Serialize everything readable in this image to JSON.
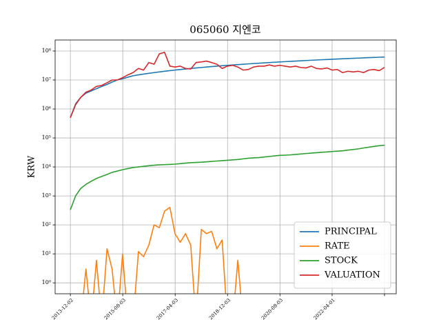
{
  "chart_data": {
    "type": "line",
    "title": "065060 지엔코",
    "ylabel": "KRW",
    "log_y": true,
    "grid": true,
    "legend": "lower right",
    "x": [
      "2013-12-02",
      "2014-02-01",
      "2014-04-01",
      "2014-06-01",
      "2014-08-01",
      "2014-10-01",
      "2014-12-01",
      "2015-02-01",
      "2015-04-01",
      "2015-06-01",
      "2015-08-01",
      "2015-10-01",
      "2015-12-01",
      "2016-02-01",
      "2016-04-01",
      "2016-06-01",
      "2016-08-01",
      "2016-10-01",
      "2016-12-01",
      "2017-02-01",
      "2017-04-01",
      "2017-06-01",
      "2017-08-01",
      "2017-10-01",
      "2017-12-01",
      "2018-02-01",
      "2018-04-01",
      "2018-06-01",
      "2018-08-01",
      "2018-10-01",
      "2018-12-01",
      "2019-02-01",
      "2019-04-01",
      "2019-06-01",
      "2019-08-01",
      "2019-10-01",
      "2019-12-01",
      "2020-02-01",
      "2020-04-01",
      "2020-06-01",
      "2020-08-01",
      "2020-10-01",
      "2020-12-01",
      "2021-02-01",
      "2021-04-01",
      "2021-06-01",
      "2021-08-01",
      "2021-10-01",
      "2021-12-01",
      "2022-02-01",
      "2022-04-01",
      "2022-06-01",
      "2022-08-01",
      "2022-10-01",
      "2022-12-01",
      "2023-02-01",
      "2023-04-01",
      "2023-06-01",
      "2023-08-01",
      "2023-10-01",
      "2023-12-01"
    ],
    "series": [
      {
        "name": "PRINCIPAL",
        "color": "#1f77b4",
        "values": [
          500000,
          1500000,
          2500000,
          3500000,
          4200000,
          5000000,
          6000000,
          7000000,
          8500000,
          10000000,
          11000000,
          12500000,
          14000000,
          15000000,
          16000000,
          17000000,
          18000000,
          19000000,
          20000000,
          21000000,
          22000000,
          23000000,
          24000000,
          25000000,
          26000000,
          27000000,
          28000000,
          29000000,
          30000000,
          31000000,
          32000000,
          33000000,
          34000000,
          35000000,
          36000000,
          37000000,
          38000000,
          39000000,
          40000000,
          41000000,
          42000000,
          43000000,
          44000000,
          45000000,
          46000000,
          47000000,
          48000000,
          49000000,
          50000000,
          51000000,
          52000000,
          53000000,
          54000000,
          55000000,
          56000000,
          57000000,
          58000000,
          59000000,
          60000000,
          61000000,
          62000000
        ]
      },
      {
        "name": "RATE",
        "color": "#ff7f0e",
        "values": [
          0,
          0,
          0,
          3,
          0,
          6,
          0,
          15,
          3,
          0,
          10,
          0,
          0,
          12,
          8,
          20,
          100,
          80,
          300,
          400,
          50,
          25,
          50,
          20,
          0,
          70,
          50,
          60,
          15,
          30,
          0,
          0,
          6,
          0,
          0,
          0,
          0,
          0,
          0,
          0,
          0,
          0,
          0,
          0,
          0,
          0,
          0,
          0,
          0,
          0,
          0,
          0,
          0,
          0,
          0,
          0,
          0,
          0,
          0,
          0,
          0
        ]
      },
      {
        "name": "STOCK",
        "color": "#2ca02c",
        "values": [
          330,
          1000,
          1800,
          2500,
          3200,
          4000,
          4700,
          5500,
          6500,
          7200,
          8000,
          8800,
          9500,
          10000,
          10500,
          11000,
          11500,
          11800,
          12000,
          12200,
          12500,
          13000,
          13500,
          14000,
          14300,
          14600,
          15000,
          15500,
          16000,
          16500,
          17000,
          17500,
          18000,
          19000,
          20000,
          20500,
          21000,
          22000,
          23000,
          24000,
          25000,
          25500,
          26000,
          27000,
          28000,
          29000,
          30000,
          31000,
          32000,
          33000,
          34000,
          35000,
          36000,
          38000,
          40000,
          42000,
          45000,
          48000,
          51000,
          54000,
          56000
        ]
      },
      {
        "name": "VALUATION",
        "color": "#d62728",
        "values": [
          500000,
          1400000,
          2500000,
          3800000,
          4500000,
          6000000,
          6500000,
          8000000,
          10000000,
          10000000,
          12000000,
          15000000,
          18000000,
          25000000,
          22000000,
          40000000,
          35000000,
          80000000,
          90000000,
          30000000,
          28000000,
          30000000,
          25000000,
          24000000,
          40000000,
          42000000,
          45000000,
          40000000,
          35000000,
          25000000,
          30000000,
          32000000,
          28000000,
          22000000,
          23000000,
          28000000,
          30000000,
          30000000,
          33000000,
          30000000,
          32000000,
          30000000,
          28000000,
          30000000,
          27000000,
          26000000,
          30000000,
          25000000,
          24000000,
          26000000,
          22000000,
          23000000,
          18000000,
          20000000,
          19000000,
          20000000,
          18000000,
          22000000,
          23000000,
          21000000,
          27000000
        ]
      }
    ],
    "xlim": [
      "2013-06-08",
      "2024-04-15"
    ],
    "xticks": [
      "2013-12-02",
      "2015-08-03",
      "2017-04-03",
      "2018-12-03",
      "2020-08-03",
      "2022-04-01",
      {
        "value": "2023-12-01",
        "label": null
      }
    ],
    "ylim": [
      0.42,
      240000000
    ],
    "yticks": [
      {
        "value": 1,
        "label": "10⁰"
      },
      {
        "value": 10,
        "label": "10¹"
      },
      {
        "value": 100,
        "label": "10²"
      },
      {
        "value": 1000,
        "label": "10³"
      },
      {
        "value": 10000,
        "label": "10⁴"
      },
      {
        "value": 100000,
        "label": "10⁵"
      },
      {
        "value": 1000000,
        "label": "10⁶"
      },
      {
        "value": 10000000,
        "label": "10⁷"
      },
      {
        "value": 100000000,
        "label": "10⁸"
      }
    ]
  }
}
